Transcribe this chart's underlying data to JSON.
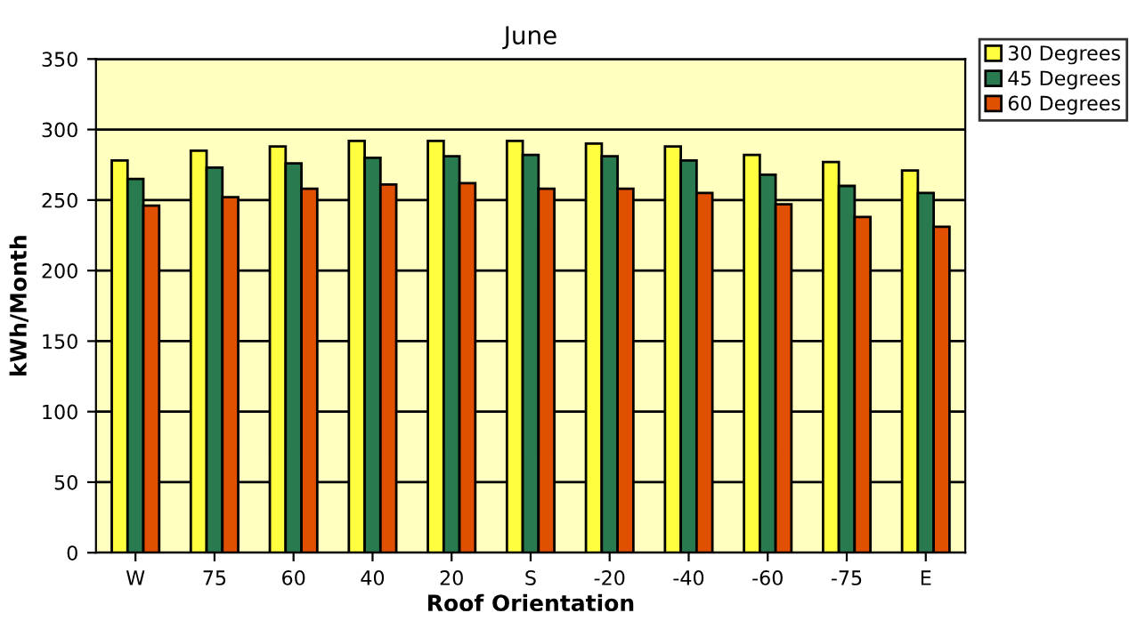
{
  "chart_data": {
    "type": "bar",
    "title": "June",
    "xlabel": "Roof Orientation",
    "ylabel": "kWh/Month",
    "categories": [
      "W",
      "75",
      "60",
      "40",
      "20",
      "S",
      "-20",
      "-40",
      "-60",
      "-75",
      "E"
    ],
    "series": [
      {
        "name": "30 Degrees",
        "color": "#ffff40",
        "values": [
          278,
          285,
          288,
          292,
          292,
          292,
          290,
          288,
          282,
          277,
          271
        ]
      },
      {
        "name": "45 Degrees",
        "color": "#2a7a50",
        "values": [
          265,
          273,
          276,
          280,
          281,
          282,
          281,
          278,
          268,
          260,
          255
        ]
      },
      {
        "name": "60 Degrees",
        "color": "#e05000",
        "values": [
          246,
          252,
          258,
          261,
          262,
          258,
          258,
          255,
          247,
          238,
          231
        ]
      }
    ],
    "ylim": [
      0,
      350
    ],
    "yticks": [
      0,
      50,
      100,
      150,
      200,
      250,
      300,
      350
    ],
    "grid": "y",
    "legend": "top right"
  }
}
